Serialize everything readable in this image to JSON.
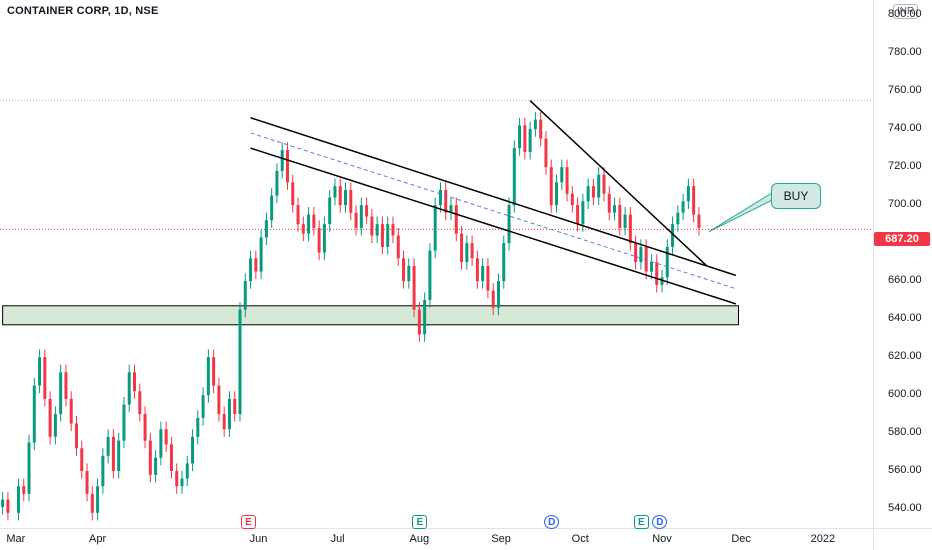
{
  "header": {
    "title": "CONTAINER CORP, 1D, NSE",
    "currency": "INR"
  },
  "price_tag": {
    "value": "687.20",
    "color": "#f23645"
  },
  "annotation": {
    "label": "BUY"
  },
  "events": [
    {
      "letter": "E",
      "kind": "earnings-red",
      "date": "2021-05-28"
    },
    {
      "letter": "E",
      "kind": "earnings-green",
      "date": "2021-08-01"
    },
    {
      "letter": "D",
      "kind": "dividend",
      "date": "2021-09-20"
    },
    {
      "letter": "E",
      "kind": "earnings-green",
      "date": "2021-10-24"
    },
    {
      "letter": "D",
      "kind": "dividend",
      "date": "2021-10-31"
    }
  ],
  "colors": {
    "up": "#089981",
    "down": "#f23645",
    "zone_fill": "#d6e9d6",
    "zone_border": "#000000",
    "trendline": "#000000",
    "midline": "#5b7fe0"
  },
  "chart_data": {
    "type": "candlestick",
    "title": "CONTAINER CORP, 1D, NSE",
    "x_axis": {
      "range": [
        "2021-02-23",
        "2022-01-20"
      ],
      "ticks": [
        {
          "label": "Mar",
          "date": "2021-03-01"
        },
        {
          "label": "Apr",
          "date": "2021-04-01"
        },
        {
          "label": "Jun",
          "date": "2021-06-01"
        },
        {
          "label": "Jul",
          "date": "2021-07-01"
        },
        {
          "label": "Aug",
          "date": "2021-08-01"
        },
        {
          "label": "Sep",
          "date": "2021-09-01"
        },
        {
          "label": "Oct",
          "date": "2021-10-01"
        },
        {
          "label": "Nov",
          "date": "2021-11-01"
        },
        {
          "label": "Dec",
          "date": "2021-12-01"
        },
        {
          "label": "2022",
          "date": "2022-01-01"
        }
      ]
    },
    "y_axis": {
      "range": [
        530,
        808
      ],
      "ticks": [
        "540.00",
        "560.00",
        "580.00",
        "600.00",
        "620.00",
        "640.00",
        "660.00",
        "680.00",
        "700.00",
        "720.00",
        "740.00",
        "760.00",
        "780.00",
        "800.00"
      ]
    },
    "closes": [
      [
        "2021-02-24",
        545
      ],
      [
        "2021-02-26",
        538
      ],
      [
        "2021-03-02",
        552
      ],
      [
        "2021-03-04",
        548
      ],
      [
        "2021-03-06",
        575
      ],
      [
        "2021-03-08",
        605
      ],
      [
        "2021-03-10",
        620
      ],
      [
        "2021-03-12",
        598
      ],
      [
        "2021-03-14",
        578
      ],
      [
        "2021-03-16",
        590
      ],
      [
        "2021-03-18",
        612
      ],
      [
        "2021-03-20",
        598
      ],
      [
        "2021-03-22",
        585
      ],
      [
        "2021-03-24",
        572
      ],
      [
        "2021-03-26",
        560
      ],
      [
        "2021-03-28",
        548
      ],
      [
        "2021-03-30",
        538
      ],
      [
        "2021-04-01",
        552
      ],
      [
        "2021-04-03",
        568
      ],
      [
        "2021-04-05",
        578
      ],
      [
        "2021-04-07",
        560
      ],
      [
        "2021-04-09",
        576
      ],
      [
        "2021-04-11",
        595
      ],
      [
        "2021-04-13",
        612
      ],
      [
        "2021-04-15",
        602
      ],
      [
        "2021-04-17",
        590
      ],
      [
        "2021-04-19",
        576
      ],
      [
        "2021-04-21",
        558
      ],
      [
        "2021-04-23",
        567
      ],
      [
        "2021-04-25",
        582
      ],
      [
        "2021-04-27",
        574
      ],
      [
        "2021-04-29",
        560
      ],
      [
        "2021-05-01",
        552
      ],
      [
        "2021-05-03",
        556
      ],
      [
        "2021-05-05",
        564
      ],
      [
        "2021-05-07",
        578
      ],
      [
        "2021-05-09",
        588
      ],
      [
        "2021-05-11",
        600
      ],
      [
        "2021-05-13",
        620
      ],
      [
        "2021-05-15",
        605
      ],
      [
        "2021-05-17",
        590
      ],
      [
        "2021-05-19",
        582
      ],
      [
        "2021-05-21",
        598
      ],
      [
        "2021-05-23",
        590
      ],
      [
        "2021-05-25",
        645
      ],
      [
        "2021-05-27",
        660
      ],
      [
        "2021-05-29",
        672
      ],
      [
        "2021-05-31",
        665
      ],
      [
        "2021-06-02",
        683
      ],
      [
        "2021-06-04",
        692
      ],
      [
        "2021-06-06",
        705
      ],
      [
        "2021-06-08",
        718
      ],
      [
        "2021-06-10",
        729
      ],
      [
        "2021-06-12",
        712
      ],
      [
        "2021-06-14",
        700
      ],
      [
        "2021-06-16",
        690
      ],
      [
        "2021-06-18",
        685
      ],
      [
        "2021-06-20",
        695
      ],
      [
        "2021-06-22",
        688
      ],
      [
        "2021-06-24",
        675
      ],
      [
        "2021-06-26",
        690
      ],
      [
        "2021-06-28",
        704
      ],
      [
        "2021-06-30",
        710
      ],
      [
        "2021-07-02",
        700
      ],
      [
        "2021-07-04",
        708
      ],
      [
        "2021-07-06",
        696
      ],
      [
        "2021-07-08",
        688
      ],
      [
        "2021-07-10",
        700
      ],
      [
        "2021-07-12",
        694
      ],
      [
        "2021-07-14",
        684
      ],
      [
        "2021-07-16",
        690
      ],
      [
        "2021-07-18",
        678
      ],
      [
        "2021-07-20",
        690
      ],
      [
        "2021-07-22",
        684
      ],
      [
        "2021-07-24",
        672
      ],
      [
        "2021-07-26",
        660
      ],
      [
        "2021-07-28",
        668
      ],
      [
        "2021-07-30",
        645
      ],
      [
        "2021-08-01",
        632
      ],
      [
        "2021-08-03",
        650
      ],
      [
        "2021-08-05",
        676
      ],
      [
        "2021-08-07",
        700
      ],
      [
        "2021-08-09",
        708
      ],
      [
        "2021-08-11",
        696
      ],
      [
        "2021-08-13",
        700
      ],
      [
        "2021-08-15",
        685
      ],
      [
        "2021-08-17",
        670
      ],
      [
        "2021-08-19",
        680
      ],
      [
        "2021-08-21",
        672
      ],
      [
        "2021-08-23",
        660
      ],
      [
        "2021-08-25",
        668
      ],
      [
        "2021-08-27",
        655
      ],
      [
        "2021-08-29",
        646
      ],
      [
        "2021-08-31",
        660
      ],
      [
        "2021-09-02",
        680
      ],
      [
        "2021-09-04",
        700
      ],
      [
        "2021-09-06",
        730
      ],
      [
        "2021-09-08",
        742
      ],
      [
        "2021-09-10",
        728
      ],
      [
        "2021-09-12",
        740
      ],
      [
        "2021-09-14",
        745
      ],
      [
        "2021-09-16",
        735
      ],
      [
        "2021-09-18",
        720
      ],
      [
        "2021-09-20",
        700
      ],
      [
        "2021-09-22",
        712
      ],
      [
        "2021-09-24",
        720
      ],
      [
        "2021-09-26",
        706
      ],
      [
        "2021-09-28",
        700
      ],
      [
        "2021-09-30",
        690
      ],
      [
        "2021-10-02",
        702
      ],
      [
        "2021-10-04",
        710
      ],
      [
        "2021-10-06",
        704
      ],
      [
        "2021-10-08",
        716
      ],
      [
        "2021-10-10",
        706
      ],
      [
        "2021-10-12",
        696
      ],
      [
        "2021-10-14",
        700
      ],
      [
        "2021-10-16",
        688
      ],
      [
        "2021-10-18",
        695
      ],
      [
        "2021-10-20",
        680
      ],
      [
        "2021-10-22",
        670
      ],
      [
        "2021-10-24",
        678
      ],
      [
        "2021-10-26",
        665
      ],
      [
        "2021-10-28",
        670
      ],
      [
        "2021-10-30",
        658
      ],
      [
        "2021-11-01",
        662
      ],
      [
        "2021-11-03",
        678
      ],
      [
        "2021-11-05",
        690
      ],
      [
        "2021-11-07",
        696
      ],
      [
        "2021-11-09",
        702
      ],
      [
        "2021-11-11",
        710
      ],
      [
        "2021-11-13",
        695
      ],
      [
        "2021-11-15",
        688
      ]
    ]
  }
}
